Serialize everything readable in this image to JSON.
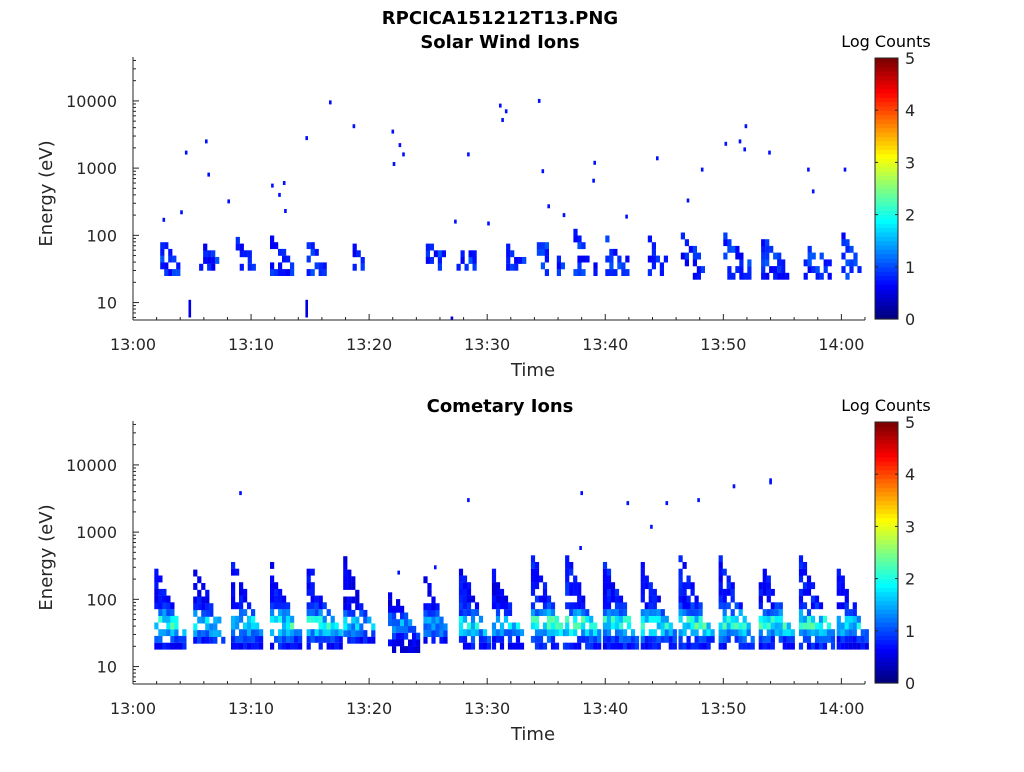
{
  "figure_title": "RPCICA151212T13.PNG",
  "colorscale": [
    "#000080",
    "#0000ff",
    "#0080ff",
    "#00ffff",
    "#80ff80",
    "#ffff00",
    "#ff8000",
    "#ff0000",
    "#800000"
  ],
  "chart_data": [
    {
      "type": "heatmap",
      "title": "Solar Wind Ions",
      "xlabel": "Time",
      "ylabel": "Energy (eV)",
      "x_ticks": [
        "13:00",
        "13:10",
        "13:20",
        "13:30",
        "13:40",
        "13:50",
        "14:00"
      ],
      "x_tick_minutes": [
        0,
        10,
        20,
        30,
        40,
        50,
        60
      ],
      "xlim_minutes": [
        0,
        62
      ],
      "y_scale": "log",
      "ylim": [
        5.5,
        45000
      ],
      "y_ticks": [
        "10",
        "100",
        "1000",
        "10000"
      ],
      "y_tick_values": [
        10,
        100,
        1000,
        10000
      ],
      "colorbar": {
        "title": "Log Counts",
        "ticks": [
          "0",
          "1",
          "2",
          "3",
          "4",
          "5"
        ],
        "range": [
          0,
          5
        ]
      },
      "bursts": [
        {
          "start": 2.3,
          "width": 1.8,
          "emin": 25,
          "emax": 90,
          "level": 0.8
        },
        {
          "start": 5.6,
          "width": 1.6,
          "emin": 30,
          "emax": 80,
          "level": 0.8
        },
        {
          "start": 8.7,
          "width": 1.8,
          "emin": 30,
          "emax": 80,
          "level": 0.8
        },
        {
          "start": 11.6,
          "width": 2.0,
          "emin": 25,
          "emax": 90,
          "level": 0.8
        },
        {
          "start": 14.7,
          "width": 1.8,
          "emin": 25,
          "emax": 80,
          "level": 0.8
        },
        {
          "start": 18.6,
          "width": 1.0,
          "emin": 30,
          "emax": 70,
          "level": 0.7
        },
        {
          "start": 24.8,
          "width": 1.8,
          "emin": 30,
          "emax": 70,
          "level": 0.8
        },
        {
          "start": 27.4,
          "width": 1.6,
          "emin": 30,
          "emax": 70,
          "level": 0.8
        },
        {
          "start": 31.6,
          "width": 1.6,
          "emin": 30,
          "emax": 70,
          "level": 0.8
        },
        {
          "start": 34.2,
          "width": 2.4,
          "emin": 25,
          "emax": 90,
          "level": 0.9
        },
        {
          "start": 37.3,
          "width": 2.2,
          "emin": 25,
          "emax": 100,
          "level": 0.9
        },
        {
          "start": 40.0,
          "width": 2.2,
          "emin": 25,
          "emax": 90,
          "level": 0.9
        },
        {
          "start": 43.6,
          "width": 1.8,
          "emin": 25,
          "emax": 80,
          "level": 0.8
        },
        {
          "start": 46.4,
          "width": 2.2,
          "emin": 22,
          "emax": 110,
          "level": 0.9
        },
        {
          "start": 50.0,
          "width": 2.4,
          "emin": 22,
          "emax": 90,
          "level": 0.9
        },
        {
          "start": 53.2,
          "width": 2.4,
          "emin": 22,
          "emax": 90,
          "level": 0.9
        },
        {
          "start": 56.8,
          "width": 2.4,
          "emin": 22,
          "emax": 90,
          "level": 0.9
        },
        {
          "start": 60.0,
          "width": 1.8,
          "emin": 22,
          "emax": 100,
          "level": 0.8
        }
      ],
      "scatter_points": [
        [
          4.5,
          1700
        ],
        [
          6.2,
          2500
        ],
        [
          6.4,
          800
        ],
        [
          8.1,
          320
        ],
        [
          4.1,
          220
        ],
        [
          2.6,
          170
        ],
        [
          11.8,
          550
        ],
        [
          12.4,
          400
        ],
        [
          12.8,
          600
        ],
        [
          12.9,
          230
        ],
        [
          14.7,
          2800
        ],
        [
          16.7,
          9500
        ],
        [
          18.7,
          4200
        ],
        [
          22.0,
          3500
        ],
        [
          22.6,
          2200
        ],
        [
          22.9,
          1600
        ],
        [
          22.1,
          1150
        ],
        [
          28.4,
          1600
        ],
        [
          31.1,
          8500
        ],
        [
          31.6,
          7000
        ],
        [
          31.3,
          5200
        ],
        [
          34.4,
          10000
        ],
        [
          34.7,
          900
        ],
        [
          35.2,
          270
        ],
        [
          39.1,
          1200
        ],
        [
          39.0,
          650
        ],
        [
          44.4,
          1400
        ],
        [
          47.0,
          330
        ],
        [
          48.2,
          950
        ],
        [
          50.2,
          2300
        ],
        [
          51.4,
          2500
        ],
        [
          51.9,
          4200
        ],
        [
          51.8,
          1900
        ],
        [
          53.9,
          1700
        ],
        [
          57.2,
          950
        ],
        [
          57.6,
          450
        ],
        [
          60.3,
          950
        ],
        [
          27.3,
          160
        ],
        [
          30.1,
          150
        ],
        [
          36.5,
          200
        ],
        [
          41.8,
          190
        ]
      ],
      "low_marks": [
        [
          4.8,
          6,
          11
        ],
        [
          14.7,
          6,
          11
        ],
        [
          27.0,
          5.6,
          6.2
        ]
      ]
    },
    {
      "type": "heatmap",
      "title": "Cometary Ions",
      "xlabel": "Time",
      "ylabel": "Energy (eV)",
      "x_ticks": [
        "13:00",
        "13:10",
        "13:20",
        "13:30",
        "13:40",
        "13:50",
        "14:00"
      ],
      "x_tick_minutes": [
        0,
        10,
        20,
        30,
        40,
        50,
        60
      ],
      "xlim_minutes": [
        0,
        62
      ],
      "y_scale": "log",
      "ylim": [
        5.5,
        45000
      ],
      "y_ticks": [
        "10",
        "100",
        "1000",
        "10000"
      ],
      "y_tick_values": [
        10,
        100,
        1000,
        10000
      ],
      "colorbar": {
        "title": "Log Counts",
        "ticks": [
          "0",
          "1",
          "2",
          "3",
          "4",
          "5"
        ],
        "range": [
          0,
          5
        ]
      },
      "bursts": [
        {
          "start": 1.8,
          "width": 2.6,
          "emin": 18,
          "emax": 260,
          "level": 2.0
        },
        {
          "start": 5.1,
          "width": 2.6,
          "emin": 22,
          "emax": 260,
          "level": 1.8
        },
        {
          "start": 8.3,
          "width": 2.8,
          "emin": 18,
          "emax": 320,
          "level": 1.9
        },
        {
          "start": 11.6,
          "width": 2.8,
          "emin": 18,
          "emax": 300,
          "level": 2.0
        },
        {
          "start": 14.7,
          "width": 3.0,
          "emin": 18,
          "emax": 320,
          "level": 2.0
        },
        {
          "start": 17.8,
          "width": 2.6,
          "emin": 22,
          "emax": 350,
          "level": 1.6
        },
        {
          "start": 21.6,
          "width": 2.6,
          "emin": 16,
          "emax": 160,
          "level": 1.4
        },
        {
          "start": 24.6,
          "width": 2.2,
          "emin": 22,
          "emax": 220,
          "level": 1.5
        },
        {
          "start": 27.6,
          "width": 2.6,
          "emin": 18,
          "emax": 300,
          "level": 1.9
        },
        {
          "start": 30.4,
          "width": 2.8,
          "emin": 18,
          "emax": 260,
          "level": 1.7
        },
        {
          "start": 33.7,
          "width": 3.0,
          "emin": 18,
          "emax": 420,
          "level": 2.2
        },
        {
          "start": 36.6,
          "width": 3.2,
          "emin": 18,
          "emax": 400,
          "level": 2.2
        },
        {
          "start": 39.8,
          "width": 3.0,
          "emin": 18,
          "emax": 350,
          "level": 2.1
        },
        {
          "start": 43.0,
          "width": 3.0,
          "emin": 18,
          "emax": 300,
          "level": 2.0
        },
        {
          "start": 46.2,
          "width": 3.2,
          "emin": 18,
          "emax": 420,
          "level": 2.1
        },
        {
          "start": 49.6,
          "width": 3.2,
          "emin": 18,
          "emax": 420,
          "level": 2.1
        },
        {
          "start": 53.0,
          "width": 3.0,
          "emin": 18,
          "emax": 350,
          "level": 2.0
        },
        {
          "start": 56.4,
          "width": 3.2,
          "emin": 18,
          "emax": 400,
          "level": 2.1
        },
        {
          "start": 59.6,
          "width": 2.6,
          "emin": 18,
          "emax": 300,
          "level": 1.8
        }
      ],
      "scatter_points": [
        [
          9.1,
          3800
        ],
        [
          28.4,
          3000
        ],
        [
          38.0,
          3800
        ],
        [
          41.9,
          2700
        ],
        [
          43.9,
          1200
        ],
        [
          45.2,
          2700
        ],
        [
          47.9,
          3000
        ],
        [
          50.9,
          4800
        ],
        [
          54.0,
          5900
        ],
        [
          54.0,
          5500
        ],
        [
          37.9,
          580
        ],
        [
          25.6,
          300
        ],
        [
          22.5,
          250
        ]
      ],
      "low_marks": []
    }
  ]
}
